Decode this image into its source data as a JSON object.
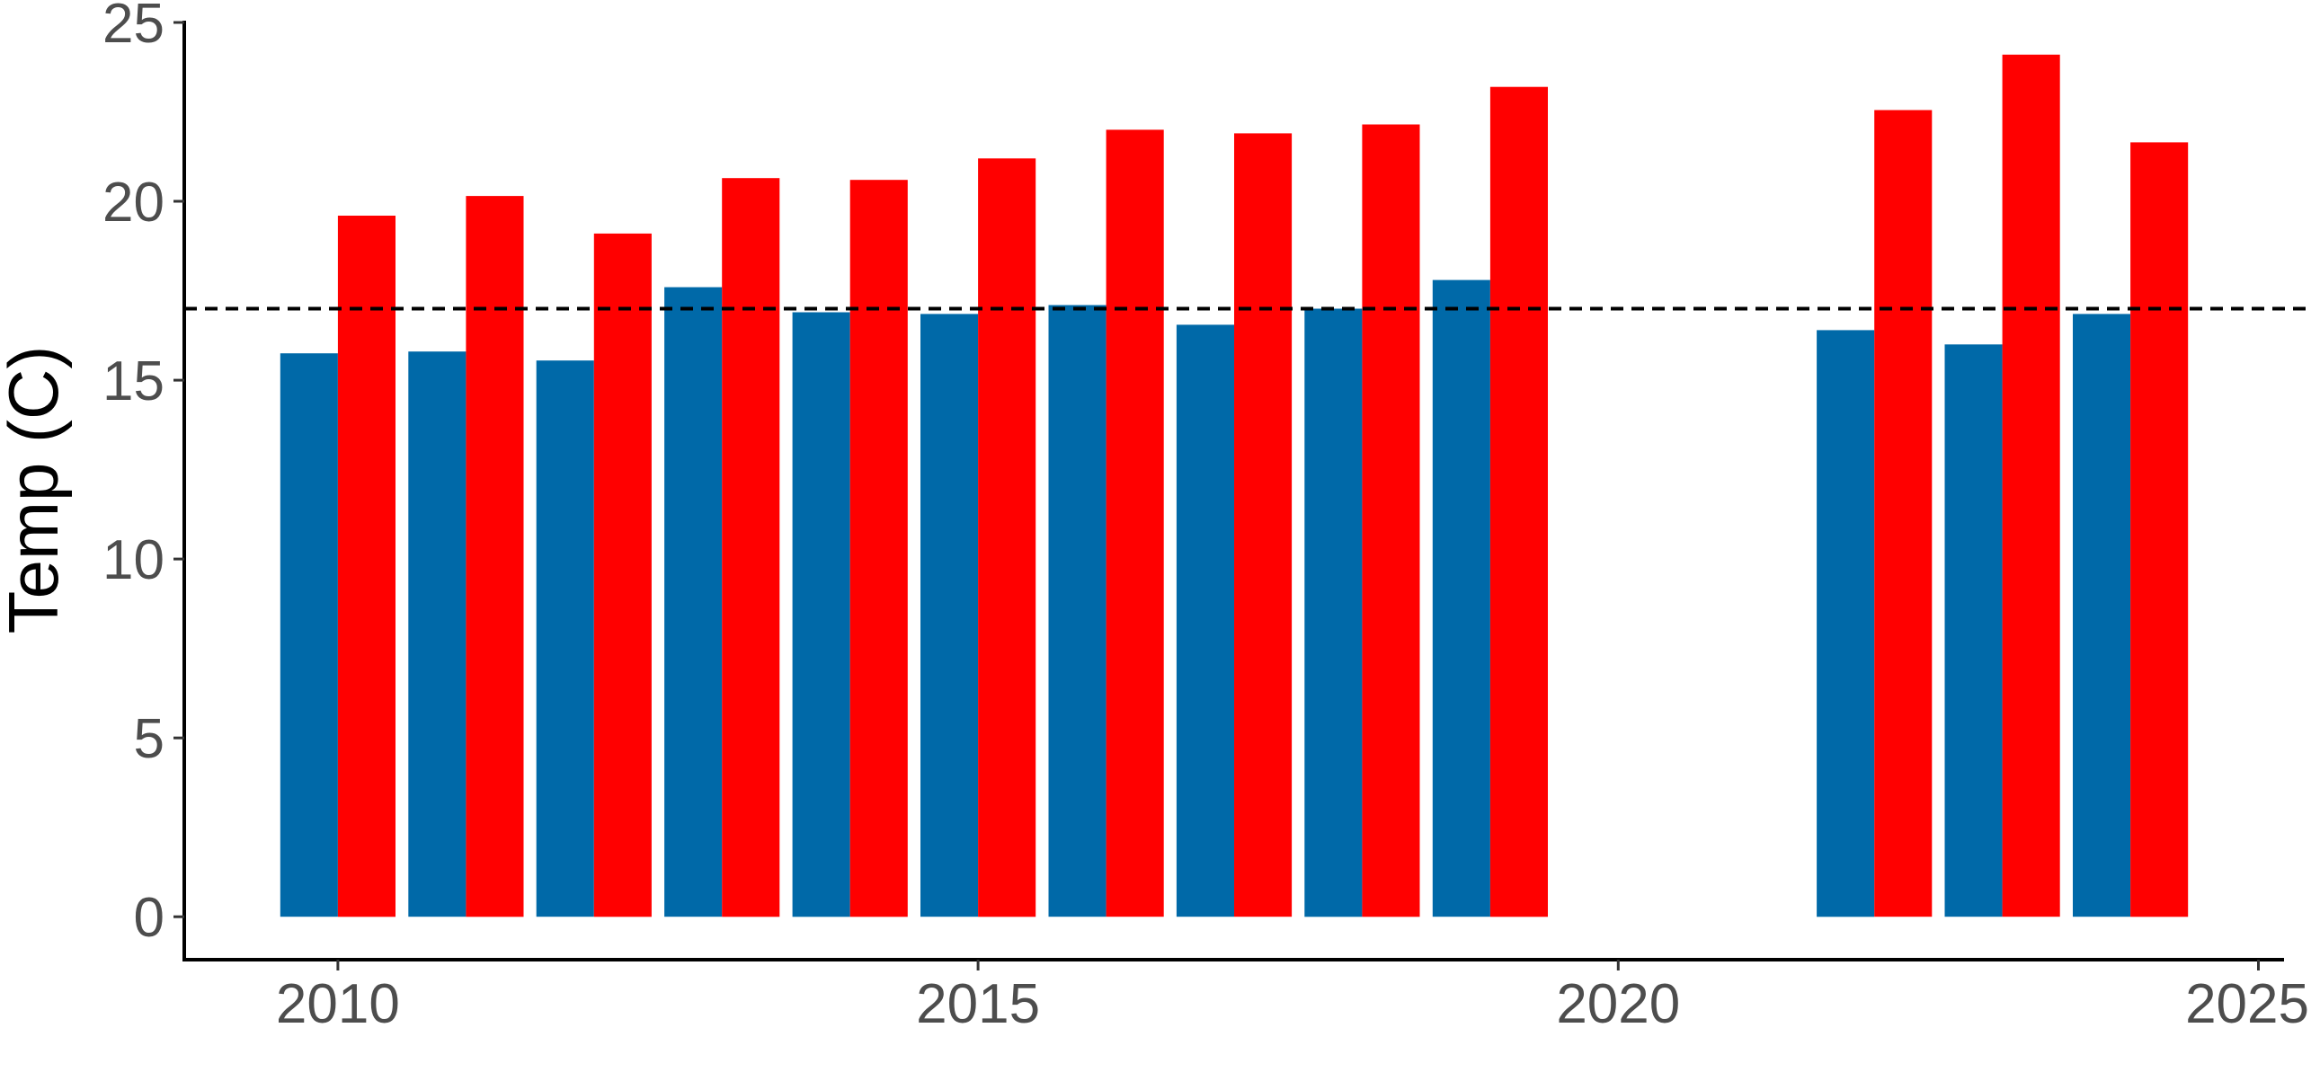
{
  "chart_data": {
    "type": "bar",
    "ylabel": "Temp (C)",
    "xlabel": "",
    "xlim": [
      2008.8,
      2025.2
    ],
    "ylim": [
      -1.2,
      25
    ],
    "x_ticks": [
      "2010",
      "2015",
      "2020",
      "2025"
    ],
    "y_ticks": [
      "0",
      "5",
      "10",
      "15",
      "20",
      "25"
    ],
    "reference_line": {
      "y": 17,
      "style": "dashed",
      "color": "#000000"
    },
    "series": [
      {
        "color": "#0069A8",
        "x": [
          2010,
          2011,
          2012,
          2013,
          2014,
          2015,
          2016,
          2017,
          2018,
          2019,
          2022,
          2023,
          2024
        ],
        "values": [
          15.75,
          15.8,
          15.55,
          17.6,
          16.9,
          16.85,
          17.1,
          16.55,
          17.0,
          17.8,
          16.4,
          16.0,
          16.85
        ]
      },
      {
        "color": "#FF0000",
        "x": [
          2010,
          2011,
          2012,
          2013,
          2014,
          2015,
          2016,
          2017,
          2018,
          2019,
          2022,
          2023,
          2024
        ],
        "values": [
          19.6,
          20.15,
          19.1,
          20.65,
          20.6,
          21.2,
          22.0,
          21.9,
          22.15,
          23.2,
          22.55,
          24.1,
          21.65
        ]
      }
    ],
    "grid": false,
    "legend": "none"
  }
}
